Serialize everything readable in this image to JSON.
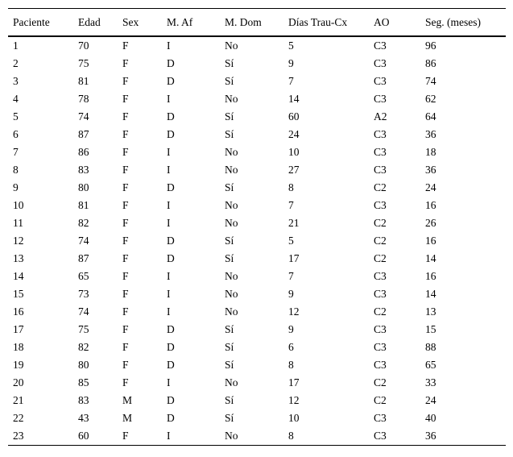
{
  "table": {
    "columns": [
      "Paciente",
      "Edad",
      "Sex",
      "M. Af",
      "M. Dom",
      "Días Trau-Cx",
      "AO",
      "Seg. (meses)"
    ],
    "rows": [
      [
        "1",
        "70",
        "F",
        "I",
        "No",
        "5",
        "C3",
        "96"
      ],
      [
        "2",
        "75",
        "F",
        "D",
        "Sí",
        "9",
        "C3",
        "86"
      ],
      [
        "3",
        "81",
        "F",
        "D",
        "Sí",
        "7",
        "C3",
        "74"
      ],
      [
        "4",
        "78",
        "F",
        "I",
        "No",
        "14",
        "C3",
        "62"
      ],
      [
        "5",
        "74",
        "F",
        "D",
        "Sí",
        "60",
        "A2",
        "64"
      ],
      [
        "6",
        "87",
        "F",
        "D",
        "Sí",
        "24",
        "C3",
        "36"
      ],
      [
        "7",
        "86",
        "F",
        "I",
        "No",
        "10",
        "C3",
        "18"
      ],
      [
        "8",
        "83",
        "F",
        "I",
        "No",
        "27",
        "C3",
        "36"
      ],
      [
        "9",
        "80",
        "F",
        "D",
        "Sí",
        "8",
        "C2",
        "24"
      ],
      [
        "10",
        "81",
        "F",
        "I",
        "No",
        "7",
        "C3",
        "16"
      ],
      [
        "11",
        "82",
        "F",
        "I",
        "No",
        "21",
        "C2",
        "26"
      ],
      [
        "12",
        "74",
        "F",
        "D",
        "Sí",
        "5",
        "C2",
        "16"
      ],
      [
        "13",
        "87",
        "F",
        "D",
        "Sí",
        "17",
        "C2",
        "14"
      ],
      [
        "14",
        "65",
        "F",
        "I",
        "No",
        "7",
        "C3",
        "16"
      ],
      [
        "15",
        "73",
        "F",
        "I",
        "No",
        "9",
        "C3",
        "14"
      ],
      [
        "16",
        "74",
        "F",
        "I",
        "No",
        "12",
        "C2",
        "13"
      ],
      [
        "17",
        "75",
        "F",
        "D",
        "Sí",
        "9",
        "C3",
        "15"
      ],
      [
        "18",
        "82",
        "F",
        "D",
        "Sí",
        "6",
        "C3",
        "88"
      ],
      [
        "19",
        "80",
        "F",
        "D",
        "Sí",
        "8",
        "C3",
        "65"
      ],
      [
        "20",
        "85",
        "F",
        "I",
        "No",
        "17",
        "C2",
        "33"
      ],
      [
        "21",
        "83",
        "M",
        "D",
        "Sí",
        "12",
        "C2",
        "24"
      ],
      [
        "22",
        "43",
        "M",
        "D",
        "Sí",
        "10",
        "C3",
        "40"
      ],
      [
        "23",
        "60",
        "F",
        "I",
        "No",
        "8",
        "C3",
        "36"
      ]
    ],
    "rule_color": "#000000",
    "background_color": "#ffffff"
  }
}
